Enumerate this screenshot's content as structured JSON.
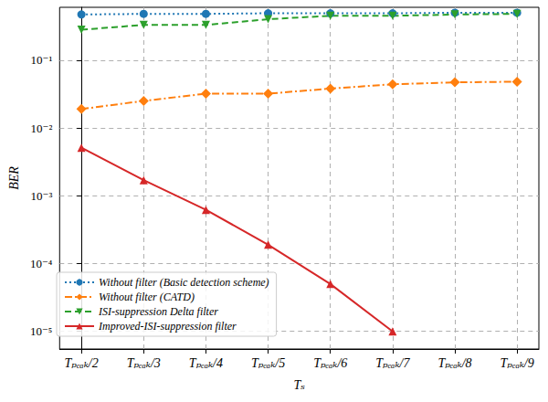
{
  "chart_data": {
    "type": "line",
    "x_label": "Tₛ",
    "y_label": "BER",
    "categories": [
      "Tₚₑₐₖ/2",
      "Tₚₑₐₖ/3",
      "Tₚₑₐₖ/4",
      "Tₚₑₐₖ/5",
      "Tₚₑₐₖ/6",
      "Tₚₑₐₖ/7",
      "Tₚₑₐₖ/8",
      "Tₚₑₐₖ/9"
    ],
    "log": "y",
    "ylim": [
      5.5e-06,
      0.6
    ],
    "yticks": [
      {
        "value": 1e-05,
        "label": "10⁻⁵"
      },
      {
        "value": 0.0001,
        "label": "10⁻⁴"
      },
      {
        "value": 0.001,
        "label": "10⁻³"
      },
      {
        "value": 0.01,
        "label": "10⁻²"
      },
      {
        "value": 0.1,
        "label": "10⁻¹"
      }
    ],
    "grid": true,
    "legend": "lower left",
    "series": [
      {
        "name": "Without filter (Basic detection scheme)",
        "color": "#1f77b4",
        "marker": "circle",
        "line_style": "dotted",
        "values": [
          0.47,
          0.48,
          0.48,
          0.49,
          0.49,
          0.49,
          0.5,
          0.5
        ]
      },
      {
        "name": "Without filter (CATD)",
        "color": "#ff7f0e",
        "marker": "diamond",
        "line_style": "dashdot",
        "values": [
          0.019,
          0.025,
          0.032,
          0.032,
          0.038,
          0.044,
          0.047,
          0.048
        ]
      },
      {
        "name": "ISI-suppression Delta filter",
        "color": "#2ca02c",
        "marker": "triangle_down",
        "line_style": "dashed",
        "values": [
          0.28,
          0.33,
          0.33,
          0.4,
          0.45,
          0.45,
          0.47,
          0.48
        ]
      },
      {
        "name": "Improved-ISI-suppression filter",
        "color": "#d62728",
        "marker": "triangle_up",
        "line_style": "solid",
        "values": [
          0.0051,
          0.0017,
          0.00062,
          0.00019,
          5e-05,
          1e-05,
          null,
          null
        ]
      }
    ]
  }
}
